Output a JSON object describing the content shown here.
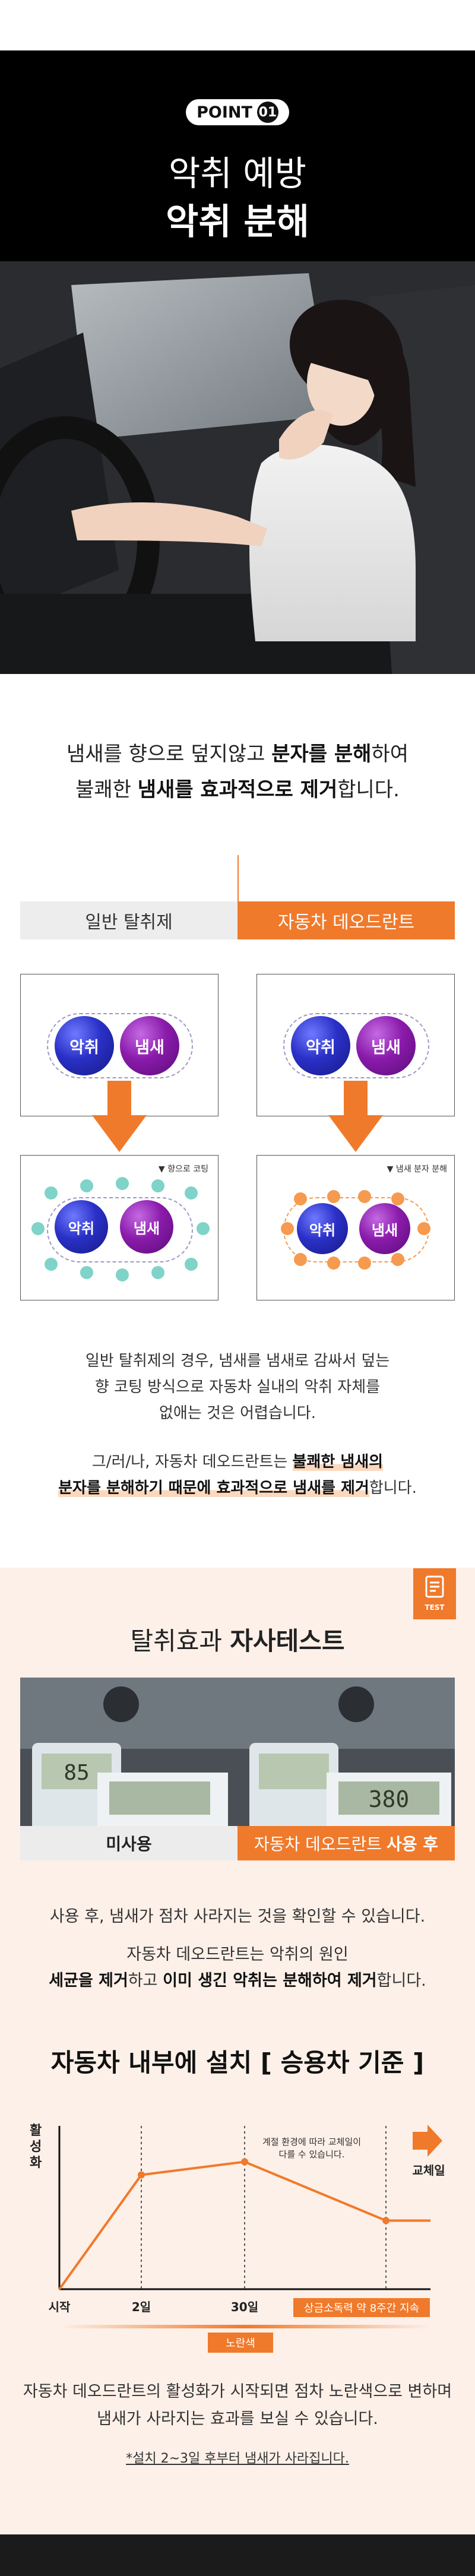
{
  "hero": {
    "point_word": "POINT",
    "point_num": "01",
    "title_line1": "악취 예방",
    "title_line2": "악취 분해"
  },
  "intro": {
    "line1_a": "냄새를 향으로 덮지않고 ",
    "line1_b": "분자를 분해",
    "line1_c": "하여",
    "line2_a": "불쾌한 ",
    "line2_b": "냄새를 효과적으로 제거",
    "line2_c": "합니다."
  },
  "compare": {
    "left_head": "일반 탈취제",
    "right_head": "자동차 데오드란트",
    "ball_odor": "악취",
    "ball_smell": "냄새",
    "left_tag": "▼ 향으로 코팅",
    "right_tag": "▼ 냄새 분자 분해"
  },
  "explain": {
    "p1_l1": "일반 탈취제의 경우, 냄새를 냄새로 감싸서 덮는",
    "p1_l2": "향 코팅 방식으로 자동차 실내의 악취 자체를",
    "p1_l3": "없애는 것은 어렵습니다.",
    "p2_l1_a": "그/러/나, 자동차 데오드란트는 ",
    "p2_l1_b": "불쾌한 냄새의",
    "p2_l2_a": "분자를 분해하기 때문에 효과적으로 냄새를 제거",
    "p2_l2_b": "합니다."
  },
  "test": {
    "badge": "TEST",
    "title_a": "탈취효과 ",
    "title_b": "자사테스트",
    "meter_left": "85",
    "meter_right": "380",
    "label_left": "미사용",
    "label_right_a": "자동차 데오드란트",
    "label_right_b": "사용 후",
    "text1": "사용 후, 냄새가 점차 사라지는 것을 확인할 수 있습니다.",
    "text2_l1": "자동차 데오드란트는 악취의 원인",
    "text2_l2_a": "세균을 제거",
    "text2_l2_b": "하고 ",
    "text2_l2_c": "이미 생긴 악취는 분해하여 제거",
    "text2_l2_d": "합니다."
  },
  "graph": {
    "title": "자동차 내부에 설치 [ 승용차 기준 ]",
    "ylabel": "활성화",
    "note_l1": "계절 환경에 따라 교체일이",
    "note_l2": "다를 수 있습니다.",
    "replace_label": "교체일",
    "x_start": "시작",
    "x_2": "2일",
    "x_30": "30일",
    "duration": "상금소독력 약 8주간 지속",
    "yellow_label": "노란색"
  },
  "chart_data": {
    "type": "line",
    "x": [
      "시작",
      "2일",
      "30일",
      "교체일"
    ],
    "values": [
      0,
      70,
      78,
      42
    ],
    "xlabel": "",
    "ylabel": "활성화"
  },
  "closing": {
    "l1": "자동차 데오드란트의 활성화가 시작되면 점차 노란색으로 변하며",
    "l2": "냄새가 사라지는 효과를 보실 수 있습니다.",
    "note": "*설치 2~3일 후부터 냄새가 사라집니다."
  },
  "colors": {
    "accent": "#f07a2b",
    "peach_bg": "#fdf0e8"
  }
}
